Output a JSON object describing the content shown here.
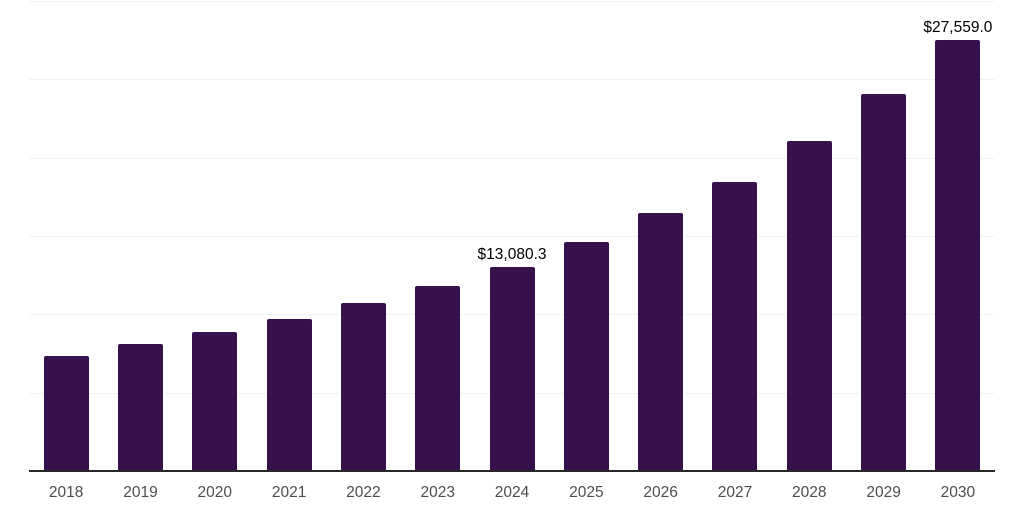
{
  "chart_data": {
    "type": "bar",
    "title": "",
    "xlabel": "",
    "ylabel": "",
    "categories": [
      "2018",
      "2019",
      "2020",
      "2021",
      "2022",
      "2023",
      "2024",
      "2025",
      "2026",
      "2027",
      "2028",
      "2029",
      "2030"
    ],
    "values": [
      7400,
      8170,
      8930,
      9760,
      10780,
      11870,
      13080.3,
      14680,
      16530,
      18500,
      21120,
      24120,
      27559.0
    ],
    "data_labels": {
      "2024": "$13,080.3",
      "2030": "$27,559.0"
    },
    "ylim": [
      0,
      30000
    ],
    "gridline_step": 5000,
    "grid": "horizontal-only, no y-axis tick labels",
    "legend_position": "none"
  },
  "colors": {
    "bar": "#36114E",
    "gridline": "#f2f2f2",
    "axis_line": "#282828",
    "x_tick_label": "#4d4d4d",
    "data_label": "#000000",
    "background": "#ffffff"
  }
}
